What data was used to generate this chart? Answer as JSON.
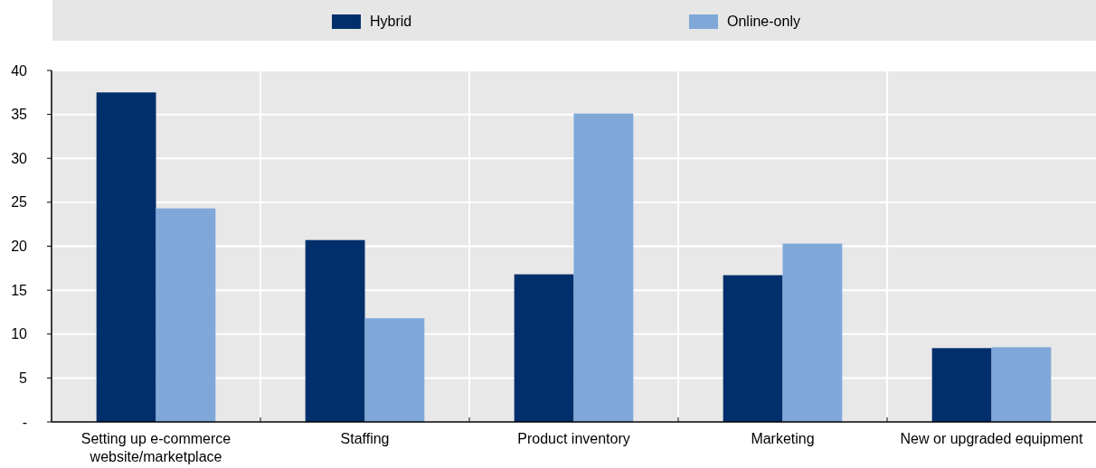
{
  "chart_data": {
    "type": "bar",
    "categories": [
      "Setting up e-commerce website/marketplace",
      "Staffing",
      "Product inventory",
      "Marketing",
      "New or upgraded equipment"
    ],
    "series": [
      {
        "name": "Hybrid",
        "color": "#002f6c",
        "values": [
          37.5,
          20.7,
          16.8,
          16.7,
          8.4
        ]
      },
      {
        "name": "Online-only",
        "color": "#7fa8d9",
        "values": [
          24.3,
          11.8,
          35.1,
          20.3,
          8.5
        ]
      }
    ],
    "ylim": [
      0,
      40
    ],
    "yticks": [
      {
        "value": 0,
        "label": "-"
      },
      5,
      10,
      15,
      20,
      25,
      30,
      35,
      40
    ],
    "grid": true,
    "legend": "top"
  }
}
